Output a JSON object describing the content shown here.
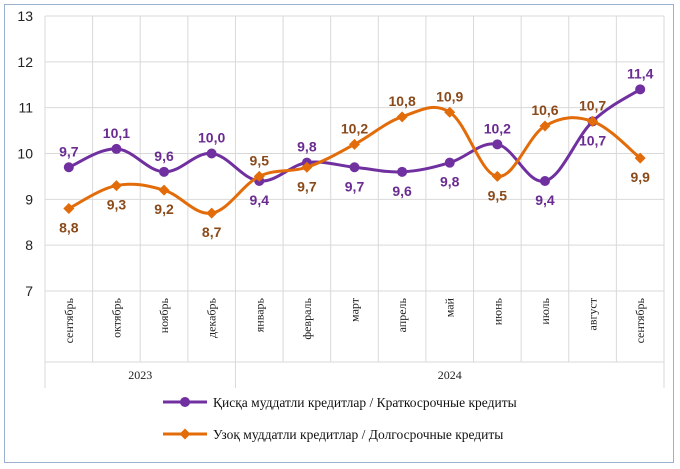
{
  "chart_data": {
    "type": "line",
    "categories": [
      "сентябрь",
      "октябрь",
      "ноябрь",
      "декабрь",
      "январь",
      "февраль",
      "март",
      "апрель",
      "май",
      "июнь",
      "июль",
      "август",
      "сентябрь"
    ],
    "year_groups": [
      {
        "label": "2023",
        "from": 0,
        "to": 3
      },
      {
        "label": "2024",
        "from": 4,
        "to": 12
      }
    ],
    "ylim": [
      7,
      13
    ],
    "yticks": [
      "7",
      "8",
      "9",
      "10",
      "11",
      "12",
      "13"
    ],
    "grid": true,
    "legend_position": "bottom",
    "series": [
      {
        "name": "Қисқа муддатли кредитлар / Краткосрочные кредиты",
        "color": "#7030a0",
        "label_color": "#6a2c91",
        "values": [
          9.7,
          10.1,
          9.6,
          10.0,
          9.4,
          9.8,
          9.7,
          9.6,
          9.8,
          10.2,
          9.4,
          10.7,
          11.4
        ],
        "labels": [
          "9,7",
          "10,1",
          "9,6",
          "10,0",
          "9,4",
          "9,8",
          "9,7",
          "9,6",
          "9,8",
          "10,2",
          "9,4",
          "10,7",
          "11,4"
        ]
      },
      {
        "name": "Узоқ муддатли кредитлар / Долгосрочные кредиты",
        "color": "#e36c0a",
        "label_color": "#8a4a1a",
        "values": [
          8.8,
          9.3,
          9.2,
          8.7,
          9.5,
          9.7,
          10.2,
          10.8,
          10.9,
          9.5,
          10.6,
          10.7,
          9.9
        ],
        "labels": [
          "8,8",
          "9,3",
          "9,2",
          "8,7",
          "9,5",
          "9,7",
          "10,2",
          "10,8",
          "10,9",
          "9,5",
          "10,6",
          "10,7",
          "9,9"
        ]
      }
    ]
  }
}
